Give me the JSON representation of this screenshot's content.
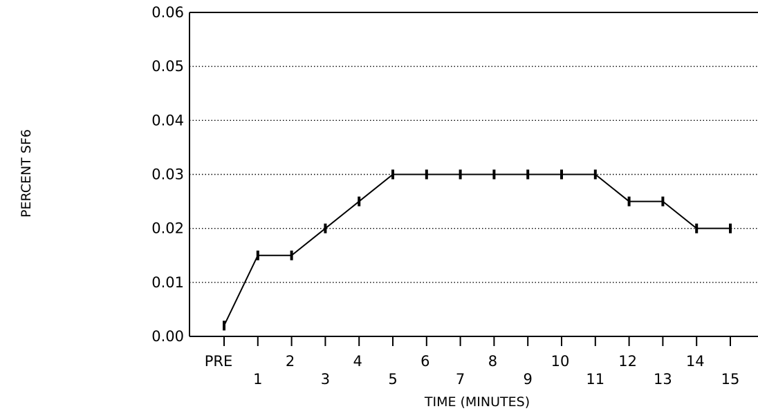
{
  "chart_data": {
    "type": "line",
    "x_categories": [
      "PRE",
      "1",
      "2",
      "3",
      "4",
      "5",
      "6",
      "7",
      "8",
      "9",
      "10",
      "11",
      "12",
      "13",
      "14",
      "15"
    ],
    "series": [
      {
        "values": [
          0.002,
          0.015,
          0.015,
          0.02,
          0.025,
          0.03,
          0.03,
          0.03,
          0.03,
          0.03,
          0.03,
          0.03,
          0.025,
          0.025,
          0.02,
          0.02
        ]
      }
    ],
    "xlabel": "TIME (MINUTES)",
    "ylabel": "PERCENT SF6",
    "y_ticks": [
      "0.00",
      "0.01",
      "0.02",
      "0.03",
      "0.04",
      "0.05",
      "0.06"
    ],
    "ylim": [
      0,
      0.06
    ],
    "grid": "horizontal dotted",
    "colors": {
      "line": "#000000",
      "grid": "#000000"
    }
  }
}
